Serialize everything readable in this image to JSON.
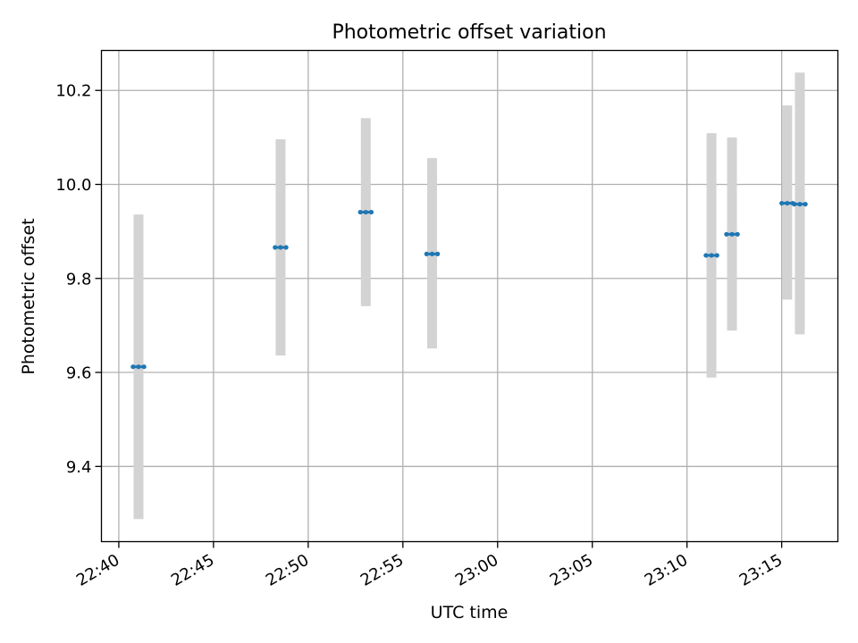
{
  "chart_data": {
    "type": "scatter",
    "title": "Photometric offset variation",
    "xlabel": "UTC time",
    "ylabel": "Photometric offset",
    "grid": true,
    "xlim": [
      "22:39:05",
      "23:17:58"
    ],
    "ylim": [
      9.24,
      10.285
    ],
    "x_ticks": [
      "22:40",
      "22:45",
      "22:50",
      "22:55",
      "23:00",
      "23:05",
      "23:10",
      "23:15"
    ],
    "y_ticks": [
      "9.4",
      "9.6",
      "9.8",
      "10.0",
      "10.2"
    ],
    "marker_color": "#1f77b4",
    "errorbar_color": "#d3d3d3",
    "series": [
      {
        "points": [
          {
            "t_start": "22:40:45",
            "t_end": "22:41:20",
            "y": 9.612,
            "ylow": 9.288,
            "yhigh": 9.936
          },
          {
            "t_start": "22:48:15",
            "t_end": "22:48:50",
            "y": 9.866,
            "ylow": 9.636,
            "yhigh": 10.096
          },
          {
            "t_start": "22:52:45",
            "t_end": "22:53:20",
            "y": 9.941,
            "ylow": 9.741,
            "yhigh": 10.141
          },
          {
            "t_start": "22:56:15",
            "t_end": "22:56:50",
            "y": 9.852,
            "ylow": 9.651,
            "yhigh": 10.056
          },
          {
            "t_start": "23:11:00",
            "t_end": "23:11:35",
            "y": 9.849,
            "ylow": 9.589,
            "yhigh": 10.109
          },
          {
            "t_start": "23:12:05",
            "t_end": "23:12:40",
            "y": 9.894,
            "ylow": 9.689,
            "yhigh": 10.1
          },
          {
            "t_start": "23:15:00",
            "t_end": "23:15:35",
            "y": 9.96,
            "ylow": 9.755,
            "yhigh": 10.168
          },
          {
            "t_start": "23:15:40",
            "t_end": "23:16:15",
            "y": 9.958,
            "ylow": 9.681,
            "yhigh": 10.238
          }
        ]
      }
    ]
  }
}
